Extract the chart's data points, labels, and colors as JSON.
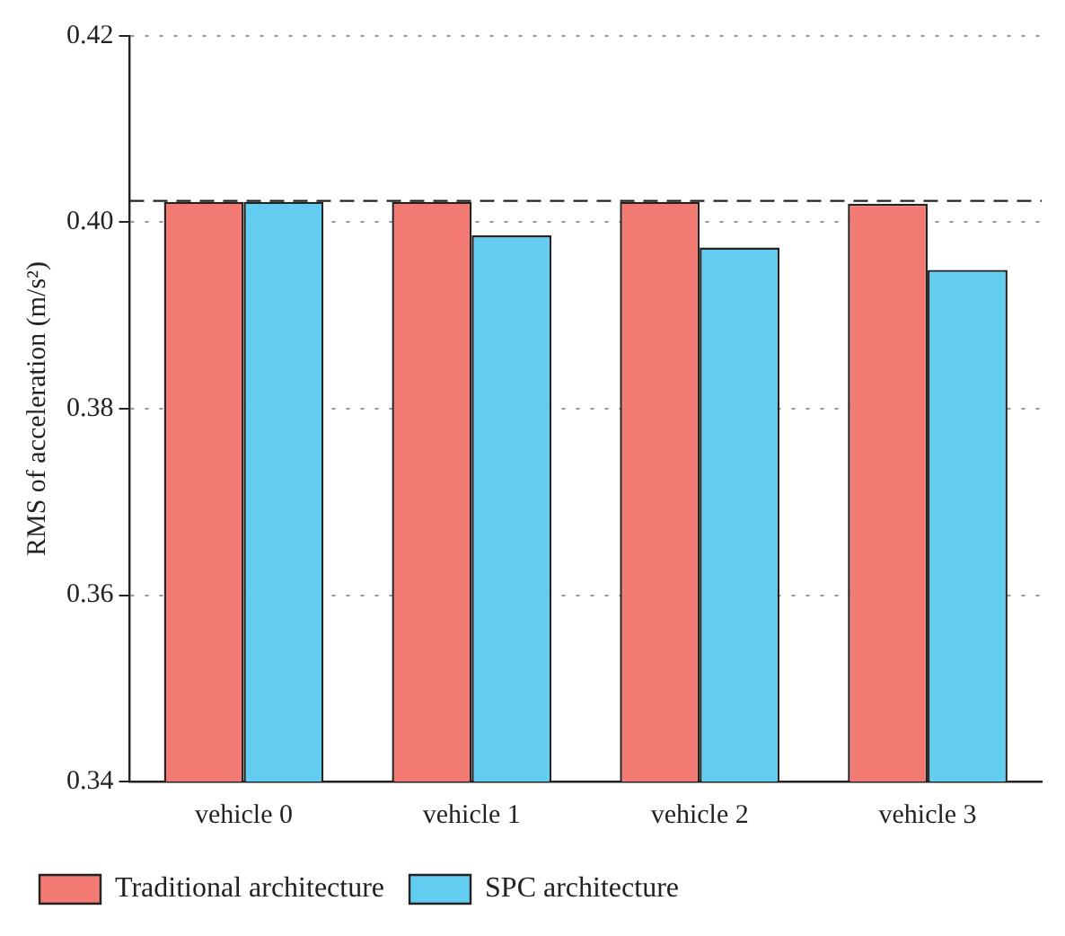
{
  "chart_data": {
    "type": "bar",
    "ylabel": "RMS of acceleration (m/s²)",
    "categories": [
      "vehicle 0",
      "vehicle 1",
      "vehicle 2",
      "vehicle 3"
    ],
    "series": [
      {
        "name": "Traditional architecture",
        "color": "#f27a72",
        "values": [
          0.4022,
          0.4022,
          0.4022,
          0.402
        ]
      },
      {
        "name": "SPC architecture",
        "color": "#62cdf0",
        "values": [
          0.4022,
          0.3986,
          0.3973,
          0.3949
        ]
      }
    ],
    "ylim": [
      0.34,
      0.42
    ],
    "yticks": [
      {
        "value": 0.34,
        "label": "0.34"
      },
      {
        "value": 0.36,
        "label": "0.36"
      },
      {
        "value": 0.38,
        "label": "0.38"
      },
      {
        "value": 0.4,
        "label": "0.40"
      },
      {
        "value": 0.42,
        "label": "0.42"
      }
    ],
    "ref_lines": [
      {
        "axis": "y",
        "value": 0.4023,
        "line_style": "dashed"
      }
    ],
    "grid": "y",
    "legend": "bottom"
  }
}
